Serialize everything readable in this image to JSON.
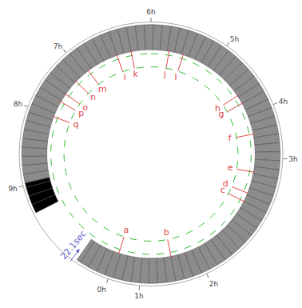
{
  "chart_data": {
    "type": "polar",
    "theta_ticks": [
      {
        "value": 199,
        "label": "0h"
      },
      {
        "value": 185,
        "label": "1h"
      },
      {
        "value": 155,
        "label": "2h"
      },
      {
        "value": 92,
        "label": "3h"
      },
      {
        "value": 68,
        "label": "4h"
      },
      {
        "value": 35,
        "label": "5h"
      },
      {
        "value": 0,
        "label": "6h"
      },
      {
        "value": 320,
        "label": "7h"
      },
      {
        "value": 291,
        "label": "8h"
      },
      {
        "value": 256,
        "label": "9h"
      }
    ],
    "markers": {
      "labels": [
        "a",
        "b",
        "c",
        "d",
        "e",
        "f",
        "g",
        "h",
        "i",
        "j",
        "k",
        "l",
        "m",
        "n",
        "o",
        "p",
        "q"
      ],
      "theta": [
        198,
        169,
        117,
        112,
        100,
        79,
        61,
        56,
        341,
        10,
        349,
        18,
        323,
        314,
        305,
        300,
        291
      ],
      "color": "#e04848"
    },
    "ring": [
      {
        "from": 257,
        "to": 215,
        "color": "#8c8c8c"
      },
      {
        "from": 243,
        "to": 257,
        "color": "#000000"
      }
    ],
    "annotation": {
      "text": "22.1sec",
      "theta": 217,
      "color": "#6060c8"
    }
  }
}
